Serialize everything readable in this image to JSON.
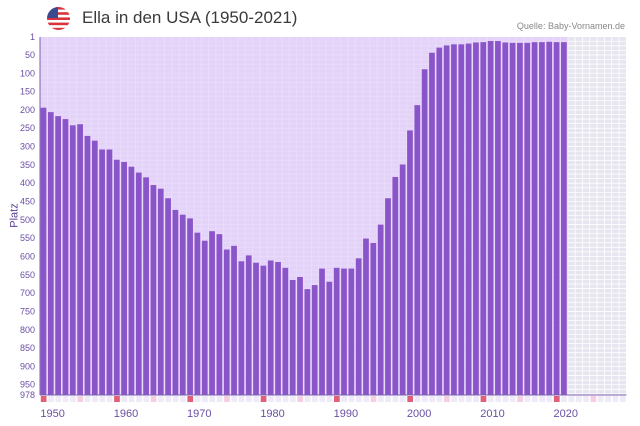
{
  "title": "Ella in den USA (1950-2021)",
  "source": "Quelle: Baby-Vornamen.de",
  "icon": "us-flag-icon",
  "colors": {
    "bar": "#8a55c9",
    "bar_gap": "#d9bdf6",
    "plot_bg": "#f2eefb",
    "future_bg": "#e7e5ef",
    "axis_text": "#6b4fa3",
    "marker_decade": "#e0607a",
    "marker_half": "#f5cfe0"
  },
  "chart_data": {
    "type": "bar",
    "title": "Ella in den USA (1950-2021)",
    "ylabel": "Platz",
    "xlabel": "",
    "y_inverted": true,
    "ylim": [
      1,
      978
    ],
    "xlim": [
      1950,
      2029
    ],
    "grid": true,
    "yticks": [
      1,
      50,
      100,
      150,
      200,
      250,
      300,
      350,
      400,
      450,
      500,
      550,
      600,
      650,
      700,
      750,
      800,
      850,
      900,
      950,
      978
    ],
    "xticks": [
      1950,
      1960,
      1970,
      1980,
      1990,
      2000,
      2010,
      2020
    ],
    "categories": [
      1950,
      1951,
      1952,
      1953,
      1954,
      1955,
      1956,
      1957,
      1958,
      1959,
      1960,
      1961,
      1962,
      1963,
      1964,
      1965,
      1966,
      1967,
      1968,
      1969,
      1970,
      1971,
      1972,
      1973,
      1974,
      1975,
      1976,
      1977,
      1978,
      1979,
      1980,
      1981,
      1982,
      1983,
      1984,
      1985,
      1986,
      1987,
      1988,
      1989,
      1990,
      1991,
      1992,
      1993,
      1994,
      1995,
      1996,
      1997,
      1998,
      1999,
      2000,
      2001,
      2002,
      2003,
      2004,
      2005,
      2006,
      2007,
      2008,
      2009,
      2010,
      2011,
      2012,
      2013,
      2014,
      2015,
      2016,
      2017,
      2018,
      2019,
      2020,
      2021
    ],
    "values": [
      194,
      206,
      217,
      225,
      242,
      239,
      271,
      284,
      308,
      308,
      336,
      342,
      355,
      371,
      384,
      405,
      415,
      441,
      473,
      486,
      496,
      535,
      557,
      531,
      539,
      581,
      571,
      613,
      597,
      617,
      625,
      611,
      615,
      631,
      664,
      656,
      689,
      678,
      633,
      669,
      631,
      633,
      633,
      605,
      551,
      563,
      513,
      441,
      383,
      349,
      256,
      187,
      89,
      44,
      30,
      24,
      21,
      21,
      19,
      16,
      15,
      12,
      12,
      16,
      17,
      17,
      17,
      15,
      15,
      14,
      15,
      15
    ]
  }
}
